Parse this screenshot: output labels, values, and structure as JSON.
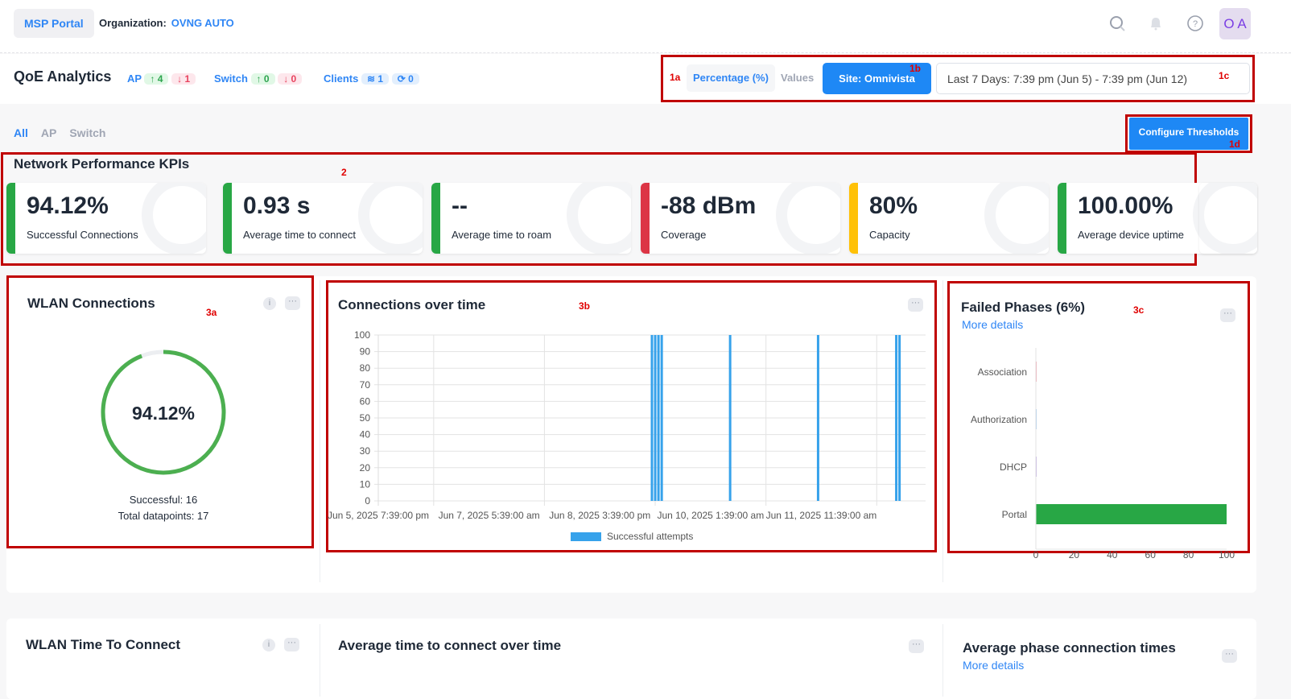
{
  "topbar": {
    "portal": "MSP Portal",
    "org_label": "Organization:",
    "org_value": "OVNG AUTO",
    "avatar": "O A",
    "icons": [
      "search-icon",
      "bell-icon",
      "help-icon"
    ]
  },
  "header": {
    "title": "QoE Analytics",
    "ap": {
      "label": "AP",
      "up": "4",
      "down": "1"
    },
    "switch": {
      "label": "Switch",
      "up": "0",
      "down": "0"
    },
    "clients": {
      "label": "Clients",
      "wifi": "1",
      "wired": "0"
    },
    "mode": {
      "percentage": "Percentage (%)",
      "values": "Values"
    },
    "site": "Site: Omnivista",
    "range": "Last 7 Days: 7:39 pm (Jun 5) - 7:39 pm (Jun 12)"
  },
  "annotations": {
    "a1a": "1a",
    "a1b": "1b",
    "a1c": "1c",
    "a1d": "1d",
    "a2": "2",
    "a3a": "3a",
    "a3b": "3b",
    "a3c": "3c"
  },
  "filter_tabs": [
    "All",
    "AP",
    "Switch"
  ],
  "configure_button": "Configure Thresholds",
  "kpis": {
    "title": "Network Performance KPIs",
    "items": [
      {
        "value": "94.12%",
        "label": "Successful Connections",
        "color": "#28a745"
      },
      {
        "value": "0.93 s",
        "label": "Average time to connect",
        "color": "#28a745"
      },
      {
        "value": "--",
        "label": "Average time to roam",
        "color": "#28a745"
      },
      {
        "value": "-88 dBm",
        "label": "Coverage",
        "color": "#dc3545"
      },
      {
        "value": "80%",
        "label": "Capacity",
        "color": "#ffc107"
      },
      {
        "value": "100.00%",
        "label": "Average device uptime",
        "color": "#28a745"
      }
    ]
  },
  "wlan": {
    "title": "WLAN Connections",
    "percent_value": 94.12,
    "percent": "94.12%",
    "successful": "Successful: 16",
    "total": "Total datapoints: 17"
  },
  "chart_data": [
    {
      "type": "bar",
      "title": "Connections over time",
      "series": [
        {
          "name": "Successful attempts",
          "color": "#36a2eb",
          "points": [
            [
              "Jun 9, 2025 7:39 am",
              100
            ],
            [
              "Jun 9, 2025 8:39 am",
              100
            ],
            [
              "Jun 9, 2025 9:39 am",
              100
            ],
            [
              "Jun 9, 2025 10:39 am",
              100
            ],
            [
              "Jun 10, 2025 7:39 am",
              100
            ],
            [
              "Jun 11, 2025 10:39 am",
              100
            ],
            [
              "Jun 12, 2025 10:39 am",
              100
            ],
            [
              "Jun 12, 2025 11:39 am",
              100
            ]
          ]
        }
      ],
      "x_range": [
        "Jun 5, 2025 7:39 pm",
        "Jun 12, 2025 7:39 pm"
      ],
      "x_ticks": [
        "Jun 5, 2025 7:39:00 pm",
        "Jun 7, 2025 5:39:00 am",
        "Jun 8, 2025 3:39:00 pm",
        "Jun 10, 2025 1:39:00 am",
        "Jun 11, 2025 11:39:00 am"
      ],
      "y_ticks": [
        "0",
        "10",
        "20",
        "30",
        "40",
        "50",
        "60",
        "70",
        "80",
        "90",
        "100"
      ],
      "ylim": [
        0,
        100
      ],
      "grid": true,
      "legend": "bottom"
    },
    {
      "type": "bar",
      "orientation": "horizontal",
      "title": "Failed Phases (6%)",
      "link": "More details",
      "categories": [
        "Association",
        "Authorization",
        "DHCP",
        "Portal"
      ],
      "values": [
        0,
        0,
        0,
        100
      ],
      "colors": [
        "#f19aa6",
        "#9cc7f0",
        "#b9a3e0",
        "#28a745"
      ],
      "x_ticks": [
        "0",
        "20",
        "40",
        "60",
        "80",
        "100"
      ],
      "xlim": [
        0,
        100
      ]
    }
  ],
  "bottom": {
    "ttc_title": "WLAN Time To Connect",
    "avg_title": "Average time to connect over time",
    "phase_title": "Average phase connection times",
    "phase_link": "More details"
  }
}
